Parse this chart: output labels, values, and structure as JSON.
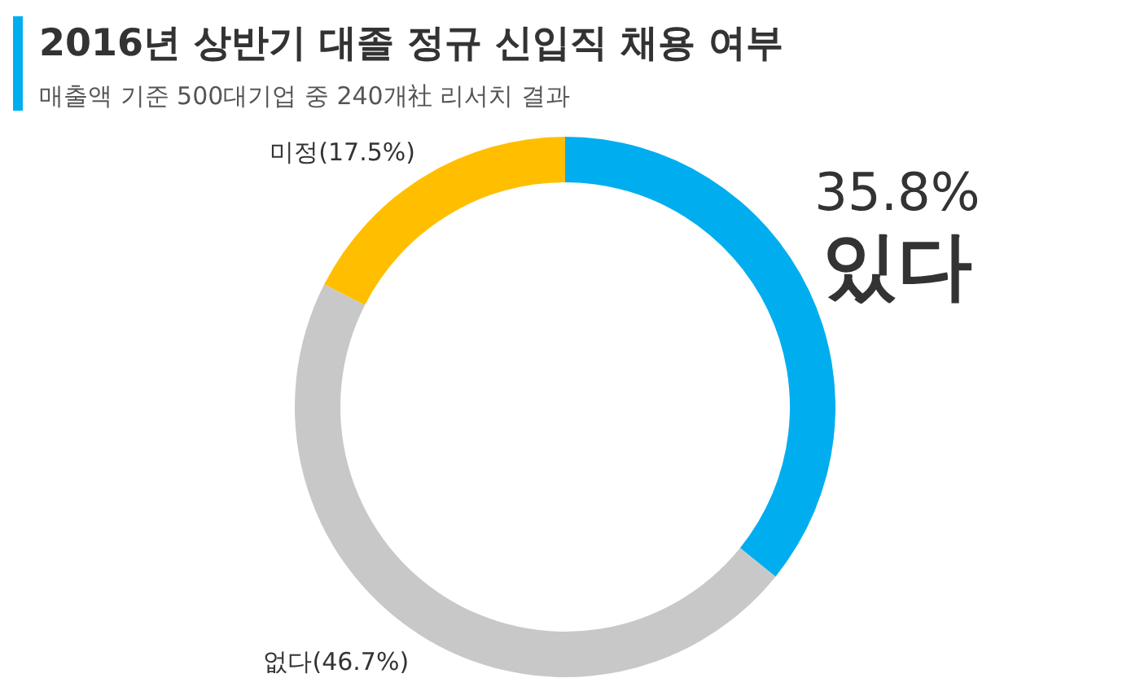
{
  "chart_data": {
    "type": "donut",
    "title": "2016년 상반기 대졸 정규 신입직 채용 여부",
    "subtitle": "매출액 기준 500대기업 중 240개社 리서치 결과",
    "categories": [
      "있다",
      "없다",
      "미정"
    ],
    "values": [
      35.8,
      46.7,
      17.5
    ],
    "value_labels": [
      "35.8%",
      "(46.7%)",
      "(17.5%)"
    ],
    "colors": [
      "#00aeef",
      "#c8c8c8",
      "#ffbf00"
    ],
    "legend": false
  }
}
